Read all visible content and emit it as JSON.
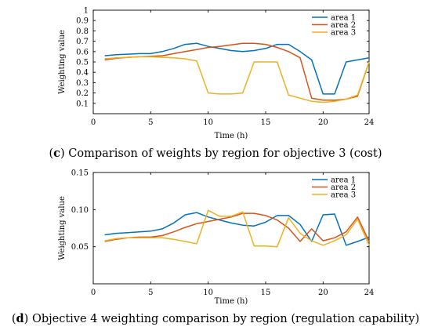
{
  "chart_data": [
    {
      "type": "line",
      "caption_letter": "c",
      "caption_text": "Comparison of weights by region for objective 3 (cost)",
      "xlabel": "Time (h)",
      "ylabel": "Weighting value",
      "xlim": [
        0,
        24
      ],
      "ylim": [
        0,
        1
      ],
      "x_ticks": [
        0,
        5,
        10,
        15,
        20,
        24
      ],
      "y_ticks": [
        0.1,
        0.2,
        0.3,
        0.4,
        0.5,
        0.6,
        0.7,
        0.8,
        0.9,
        1
      ],
      "y_tick_labels": [
        "0.1",
        "0.2",
        "0.3",
        "0.4",
        "0.5",
        "0.6",
        "0.7",
        "0.8",
        "0.9",
        "1"
      ],
      "legend_position": "top-right",
      "x": [
        1,
        2,
        3,
        4,
        5,
        6,
        7,
        8,
        9,
        10,
        11,
        12,
        13,
        14,
        15,
        16,
        17,
        18,
        19,
        20,
        21,
        22,
        23,
        24
      ],
      "series": [
        {
          "name": "area 1",
          "color": "#0072BD",
          "values": [
            0.56,
            0.57,
            0.575,
            0.58,
            0.58,
            0.6,
            0.63,
            0.67,
            0.68,
            0.65,
            0.63,
            0.61,
            0.6,
            0.61,
            0.63,
            0.67,
            0.67,
            0.6,
            0.52,
            0.19,
            0.19,
            0.5,
            0.52,
            0.54
          ]
        },
        {
          "name": "area 2",
          "color": "#D95319",
          "values": [
            0.52,
            0.535,
            0.545,
            0.55,
            0.555,
            0.56,
            0.58,
            0.6,
            0.62,
            0.64,
            0.65,
            0.665,
            0.68,
            0.68,
            0.67,
            0.64,
            0.6,
            0.54,
            0.15,
            0.13,
            0.13,
            0.14,
            0.17,
            0.5
          ]
        },
        {
          "name": "area 3",
          "color": "#EDB120",
          "values": [
            0.53,
            0.54,
            0.545,
            0.55,
            0.55,
            0.545,
            0.54,
            0.53,
            0.51,
            0.2,
            0.19,
            0.19,
            0.2,
            0.5,
            0.5,
            0.5,
            0.18,
            0.15,
            0.12,
            0.11,
            0.12,
            0.14,
            0.18,
            0.5
          ]
        }
      ]
    },
    {
      "type": "line",
      "caption_letter": "d",
      "caption_text": "Objective 4 weighting comparison by region (regulation capability)",
      "xlabel": "Time (h)",
      "ylabel": "Weighting value",
      "xlim": [
        0,
        24
      ],
      "ylim": [
        0,
        0.15
      ],
      "x_ticks": [
        0,
        5,
        10,
        15,
        20,
        24
      ],
      "y_ticks": [
        0.05,
        0.1,
        0.15
      ],
      "y_tick_labels": [
        "0.05",
        "0.10",
        "0.15"
      ],
      "legend_position": "top-right",
      "x": [
        1,
        2,
        3,
        4,
        5,
        6,
        7,
        8,
        9,
        10,
        11,
        12,
        13,
        14,
        15,
        16,
        17,
        18,
        19,
        20,
        21,
        22,
        23,
        24
      ],
      "series": [
        {
          "name": "area 1",
          "color": "#0072BD",
          "values": [
            0.066,
            0.068,
            0.069,
            0.07,
            0.071,
            0.074,
            0.082,
            0.093,
            0.096,
            0.09,
            0.086,
            0.082,
            0.079,
            0.078,
            0.083,
            0.092,
            0.092,
            0.08,
            0.057,
            0.093,
            0.094,
            0.052,
            0.057,
            0.063
          ]
        },
        {
          "name": "area 2",
          "color": "#D95319",
          "values": [
            0.057,
            0.06,
            0.062,
            0.063,
            0.063,
            0.065,
            0.07,
            0.076,
            0.081,
            0.084,
            0.087,
            0.09,
            0.095,
            0.095,
            0.092,
            0.086,
            0.075,
            0.057,
            0.074,
            0.058,
            0.062,
            0.07,
            0.09,
            0.057
          ]
        },
        {
          "name": "area 3",
          "color": "#EDB120",
          "values": [
            0.058,
            0.061,
            0.062,
            0.062,
            0.062,
            0.062,
            0.06,
            0.057,
            0.054,
            0.099,
            0.091,
            0.091,
            0.097,
            0.051,
            0.051,
            0.05,
            0.089,
            0.068,
            0.058,
            0.052,
            0.058,
            0.066,
            0.087,
            0.052
          ]
        }
      ]
    }
  ]
}
